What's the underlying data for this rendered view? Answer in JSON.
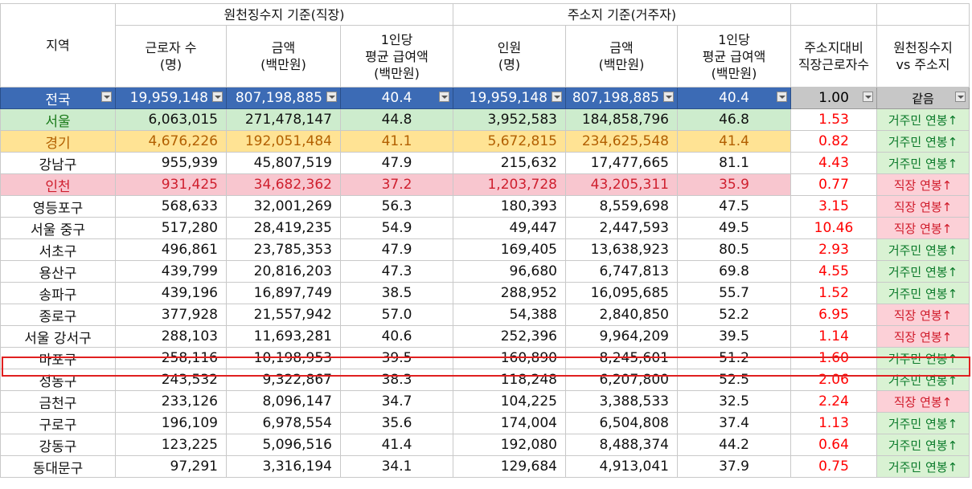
{
  "headers": {
    "region": "지역",
    "group_work": "원천징수지 기준(직장)",
    "group_home": "주소지 기준(거주자)",
    "workers": [
      "근로자 수",
      "(명)"
    ],
    "amount": [
      "금액",
      "(백만원)"
    ],
    "avg": [
      "1인당",
      "평균 급여액",
      "(백만원)"
    ],
    "people": [
      "인원",
      "(명)"
    ],
    "ratio": [
      "주소지대비",
      "직장근로자수"
    ],
    "compare": [
      "원천징수지",
      "vs 주소지"
    ]
  },
  "total": {
    "region": "전국",
    "workers": "19,959,148",
    "amount": "807,198,885",
    "avg": "40.4",
    "people": "19,959,148",
    "amount2": "807,198,885",
    "avg2": "40.4",
    "ratio": "1.00",
    "compare": "같음"
  },
  "rows": [
    {
      "region": "서울",
      "workers": "6,063,015",
      "amount": "271,478,147",
      "avg": "44.8",
      "people": "3,952,583",
      "amount2": "184,858,796",
      "avg2": "46.8",
      "ratio": "1.53",
      "compare": "거주민 연봉↑"
    },
    {
      "region": "경기",
      "workers": "4,676,226",
      "amount": "192,051,484",
      "avg": "41.1",
      "people": "5,672,815",
      "amount2": "234,625,548",
      "avg2": "41.4",
      "ratio": "0.82",
      "compare": "거주민 연봉↑"
    },
    {
      "region": "강남구",
      "workers": "955,939",
      "amount": "45,807,519",
      "avg": "47.9",
      "people": "215,632",
      "amount2": "17,477,665",
      "avg2": "81.1",
      "ratio": "4.43",
      "compare": "거주민 연봉↑"
    },
    {
      "region": "인천",
      "workers": "931,425",
      "amount": "34,682,362",
      "avg": "37.2",
      "people": "1,203,728",
      "amount2": "43,205,311",
      "avg2": "35.9",
      "ratio": "0.77",
      "compare": "직장 연봉↑"
    },
    {
      "region": "영등포구",
      "workers": "568,633",
      "amount": "32,001,269",
      "avg": "56.3",
      "people": "180,393",
      "amount2": "8,559,698",
      "avg2": "47.5",
      "ratio": "3.15",
      "compare": "직장 연봉↑"
    },
    {
      "region": "서울 중구",
      "workers": "517,280",
      "amount": "28,419,235",
      "avg": "54.9",
      "people": "49,447",
      "amount2": "2,447,593",
      "avg2": "49.5",
      "ratio": "10.46",
      "compare": "직장 연봉↑"
    },
    {
      "region": "서초구",
      "workers": "496,861",
      "amount": "23,785,353",
      "avg": "47.9",
      "people": "169,405",
      "amount2": "13,638,923",
      "avg2": "80.5",
      "ratio": "2.93",
      "compare": "거주민 연봉↑"
    },
    {
      "region": "용산구",
      "workers": "439,799",
      "amount": "20,816,203",
      "avg": "47.3",
      "people": "96,680",
      "amount2": "6,747,813",
      "avg2": "69.8",
      "ratio": "4.55",
      "compare": "거주민 연봉↑"
    },
    {
      "region": "송파구",
      "workers": "439,196",
      "amount": "16,897,749",
      "avg": "38.5",
      "people": "288,952",
      "amount2": "16,095,685",
      "avg2": "55.7",
      "ratio": "1.52",
      "compare": "거주민 연봉↑"
    },
    {
      "region": "종로구",
      "workers": "377,928",
      "amount": "21,557,942",
      "avg": "57.0",
      "people": "54,388",
      "amount2": "2,840,850",
      "avg2": "52.2",
      "ratio": "6.95",
      "compare": "직장 연봉↑"
    },
    {
      "region": "서울 강서구",
      "workers": "288,103",
      "amount": "11,693,281",
      "avg": "40.6",
      "people": "252,396",
      "amount2": "9,964,209",
      "avg2": "39.5",
      "ratio": "1.14",
      "compare": "직장 연봉↑"
    },
    {
      "region": "마포구",
      "workers": "258,116",
      "amount": "10,198,953",
      "avg": "39.5",
      "people": "160,890",
      "amount2": "8,245,601",
      "avg2": "51.2",
      "ratio": "1.60",
      "compare": "거주민 연봉↑"
    },
    {
      "region": "성동구",
      "workers": "243,532",
      "amount": "9,322,867",
      "avg": "38.3",
      "people": "118,248",
      "amount2": "6,207,800",
      "avg2": "52.5",
      "ratio": "2.06",
      "compare": "거주민 연봉↑"
    },
    {
      "region": "금천구",
      "workers": "233,126",
      "amount": "8,096,147",
      "avg": "34.7",
      "people": "104,225",
      "amount2": "3,388,533",
      "avg2": "32.5",
      "ratio": "2.24",
      "compare": "직장 연봉↑"
    },
    {
      "region": "구로구",
      "workers": "196,109",
      "amount": "6,978,554",
      "avg": "35.6",
      "people": "174,004",
      "amount2": "6,504,808",
      "avg2": "37.4",
      "ratio": "1.13",
      "compare": "거주민 연봉↑"
    },
    {
      "region": "강동구",
      "workers": "123,225",
      "amount": "5,096,516",
      "avg": "41.4",
      "people": "192,080",
      "amount2": "8,488,374",
      "avg2": "44.2",
      "ratio": "0.64",
      "compare": "거주민 연봉↑"
    },
    {
      "region": "동대문구",
      "workers": "97,291",
      "amount": "3,316,194",
      "avg": "34.1",
      "people": "129,684",
      "amount2": "4,913,041",
      "avg2": "37.9",
      "ratio": "0.75",
      "compare": "거주민 연봉↑"
    }
  ],
  "colors": {
    "total_row": "#3c6bb5",
    "seoul_row": "#cdeccd",
    "gyeonggi_row": "#ffe394",
    "incheon_row": "#f8c6cf",
    "highlight_border": "#e02020"
  }
}
